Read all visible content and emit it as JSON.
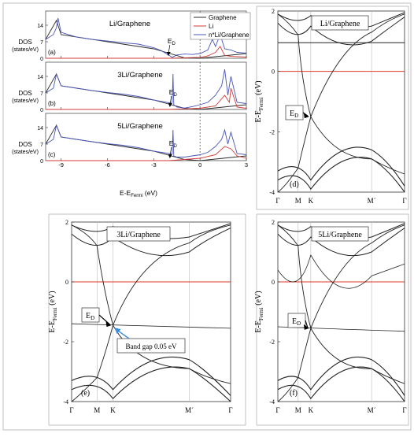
{
  "colors": {
    "graphene": "#2b2b2b",
    "li": "#d43a3a",
    "total": "#4a55b5",
    "fermi": "#e03a2a",
    "band": "#222222",
    "arrow_blue": "#3a8ee0",
    "frame": "#9a9a9a"
  },
  "dos": {
    "ylabel_line1": "DOS",
    "ylabel_line2": "(states/eV)",
    "xlabel_main": "E-E",
    "xlabel_sub": "Fermi",
    "xlabel_unit": " (eV)",
    "xticks": [
      "-9",
      "-6",
      "-3",
      "0",
      "3"
    ],
    "yticks": [
      "0",
      "7",
      "14"
    ],
    "legend": [
      "Graphene",
      "Li",
      "n*Li/Graphene"
    ],
    "panels": [
      {
        "letter": "(a)",
        "title": "Li/Graphene",
        "ed": "E",
        "ed_sub": "D"
      },
      {
        "letter": "(b)",
        "title": "3Li/Graphene",
        "ed": "E",
        "ed_sub": "D"
      },
      {
        "letter": "(c)",
        "title": "5Li/Graphene",
        "ed": "E",
        "ed_sub": "D"
      }
    ]
  },
  "bands": {
    "ylabel_main": "E-E",
    "ylabel_sub": "Fermi",
    "ylabel_unit": " (eV)",
    "yticks": [
      "2",
      "0",
      "-2",
      "-4"
    ],
    "kpoints": [
      "Γ",
      "M",
      "K",
      "M´",
      "Γ"
    ],
    "ed_label": "E",
    "ed_sub": "D",
    "panels": [
      {
        "letter": "(d)",
        "title": "Li/Graphene"
      },
      {
        "letter": "(e)",
        "title": "3Li/Graphene",
        "gap_note": "Band gap 0.05 eV"
      },
      {
        "letter": "(f)",
        "title": "5Li/Graphene"
      }
    ]
  },
  "chart_data": [
    {
      "type": "line",
      "panel": "(a)",
      "title": "Li/Graphene",
      "xlabel": "E-EFermi (eV)",
      "ylabel": "DOS (states/eV)",
      "xlim": [
        -10,
        3
      ],
      "ylim": [
        0,
        20
      ],
      "series": [
        {
          "name": "n*Li/Graphene",
          "x": [
            -10,
            -9.5,
            -9.3,
            -9.2,
            -9,
            -8,
            -7,
            -6,
            -5,
            -4,
            -3,
            -2.5,
            -2,
            -1.8,
            -1.5,
            -1,
            -0.5,
            0,
            0.5,
            0.8,
            1,
            1.3,
            1.6,
            2,
            2.4,
            3
          ],
          "y": [
            8,
            10,
            13,
            17,
            11,
            9,
            8,
            7.3,
            6.6,
            6,
            4.5,
            3.2,
            1.2,
            0.4,
            1.4,
            1.8,
            1.6,
            2,
            3.5,
            8,
            5,
            10,
            4,
            3.5,
            2.5,
            2.2
          ]
        },
        {
          "name": "Li",
          "x": [
            -10,
            -4,
            -2,
            0,
            0.5,
            1,
            1.3,
            1.6,
            2,
            3
          ],
          "y": [
            0,
            0,
            0,
            0.4,
            1,
            2.5,
            5,
            1.2,
            0.8,
            0.5
          ]
        },
        {
          "name": "Graphene",
          "x": [
            -10,
            -9.3,
            -9,
            -6,
            -3,
            -1,
            0,
            3
          ],
          "y": [
            8,
            16,
            10,
            7,
            4,
            0.2,
            0,
            2
          ]
        }
      ]
    },
    {
      "type": "line",
      "panel": "(b)",
      "title": "3Li/Graphene",
      "xlim": [
        -10,
        3
      ],
      "ylim": [
        0,
        20
      ],
      "series": [
        {
          "name": "n*Li/Graphene",
          "x": [
            -10,
            -9.5,
            -9.3,
            -9,
            -8,
            -7,
            -6,
            -5,
            -4,
            -3,
            -2,
            -1.8,
            -1.75,
            -1.7,
            -1.5,
            -1,
            -0.5,
            0,
            0.5,
            1,
            1.4,
            1.6,
            1.8,
            2,
            2.4,
            3
          ],
          "y": [
            7,
            9,
            15,
            10,
            9,
            8,
            7.2,
            6.5,
            5.5,
            4,
            2.8,
            3,
            15,
            2,
            1,
            0.6,
            1.2,
            2,
            3,
            6,
            10,
            17,
            6,
            14,
            3,
            2.5
          ]
        },
        {
          "name": "Li",
          "x": [
            -10,
            -2,
            0,
            1,
            1.6,
            1.9,
            2,
            2.4,
            3
          ],
          "y": [
            0,
            0,
            0.5,
            1.5,
            6,
            3,
            9,
            1,
            0.5
          ]
        },
        {
          "name": "Graphene",
          "x": [
            -10,
            -9.3,
            -9,
            -6,
            -3,
            -1,
            0,
            3
          ],
          "y": [
            7,
            15,
            10,
            7,
            4,
            0.5,
            0,
            2
          ]
        }
      ]
    },
    {
      "type": "line",
      "panel": "(c)",
      "title": "5Li/Graphene",
      "xlim": [
        -10,
        3
      ],
      "ylim": [
        0,
        20
      ],
      "series": [
        {
          "name": "n*Li/Graphene",
          "x": [
            -10,
            -9.5,
            -9.3,
            -9,
            -8,
            -7,
            -6,
            -5,
            -4,
            -3,
            -2,
            -1.8,
            -1.75,
            -1.7,
            -1.5,
            -1,
            -0.5,
            0,
            0.5,
            1,
            1.4,
            1.6,
            1.8,
            2,
            2.4,
            3
          ],
          "y": [
            7,
            9,
            15,
            10,
            9,
            8,
            7.2,
            6.5,
            5.5,
            4,
            3,
            3,
            13,
            2,
            1.5,
            1.5,
            2,
            2.5,
            3.5,
            6,
            9,
            13,
            7,
            12,
            3,
            2.5
          ]
        },
        {
          "name": "Li",
          "x": [
            -10,
            -2,
            0,
            1,
            1.6,
            2,
            2.4,
            3
          ],
          "y": [
            0,
            0,
            1,
            2.5,
            6,
            5,
            2,
            1
          ]
        },
        {
          "name": "Graphene",
          "x": [
            -10,
            -9.3,
            -9,
            -6,
            -3,
            -1,
            0,
            3
          ],
          "y": [
            7,
            15,
            10,
            7,
            4,
            0.5,
            0,
            2
          ]
        }
      ]
    },
    {
      "type": "line",
      "panel": "(d)",
      "title": "Li/Graphene",
      "xlabel": "",
      "ylabel": "E-EFermi (eV)",
      "ylim": [
        -4,
        2
      ],
      "x": [
        "Γ",
        "M",
        "K",
        "M´",
        "Γ"
      ],
      "dirac_point_energy": -1.5
    },
    {
      "type": "line",
      "panel": "(e)",
      "title": "3Li/Graphene",
      "ylabel": "E-EFermi (eV)",
      "ylim": [
        -4,
        2
      ],
      "x": [
        "Γ",
        "M",
        "K",
        "M´",
        "Γ"
      ],
      "dirac_point_energy": -1.45,
      "band_gap_eV": 0.05
    },
    {
      "type": "line",
      "panel": "(f)",
      "title": "5Li/Graphene",
      "ylabel": "E-EFermi (eV)",
      "ylim": [
        -4,
        2
      ],
      "x": [
        "Γ",
        "M",
        "K",
        "M´",
        "Γ"
      ],
      "dirac_point_energy": -1.55
    }
  ]
}
